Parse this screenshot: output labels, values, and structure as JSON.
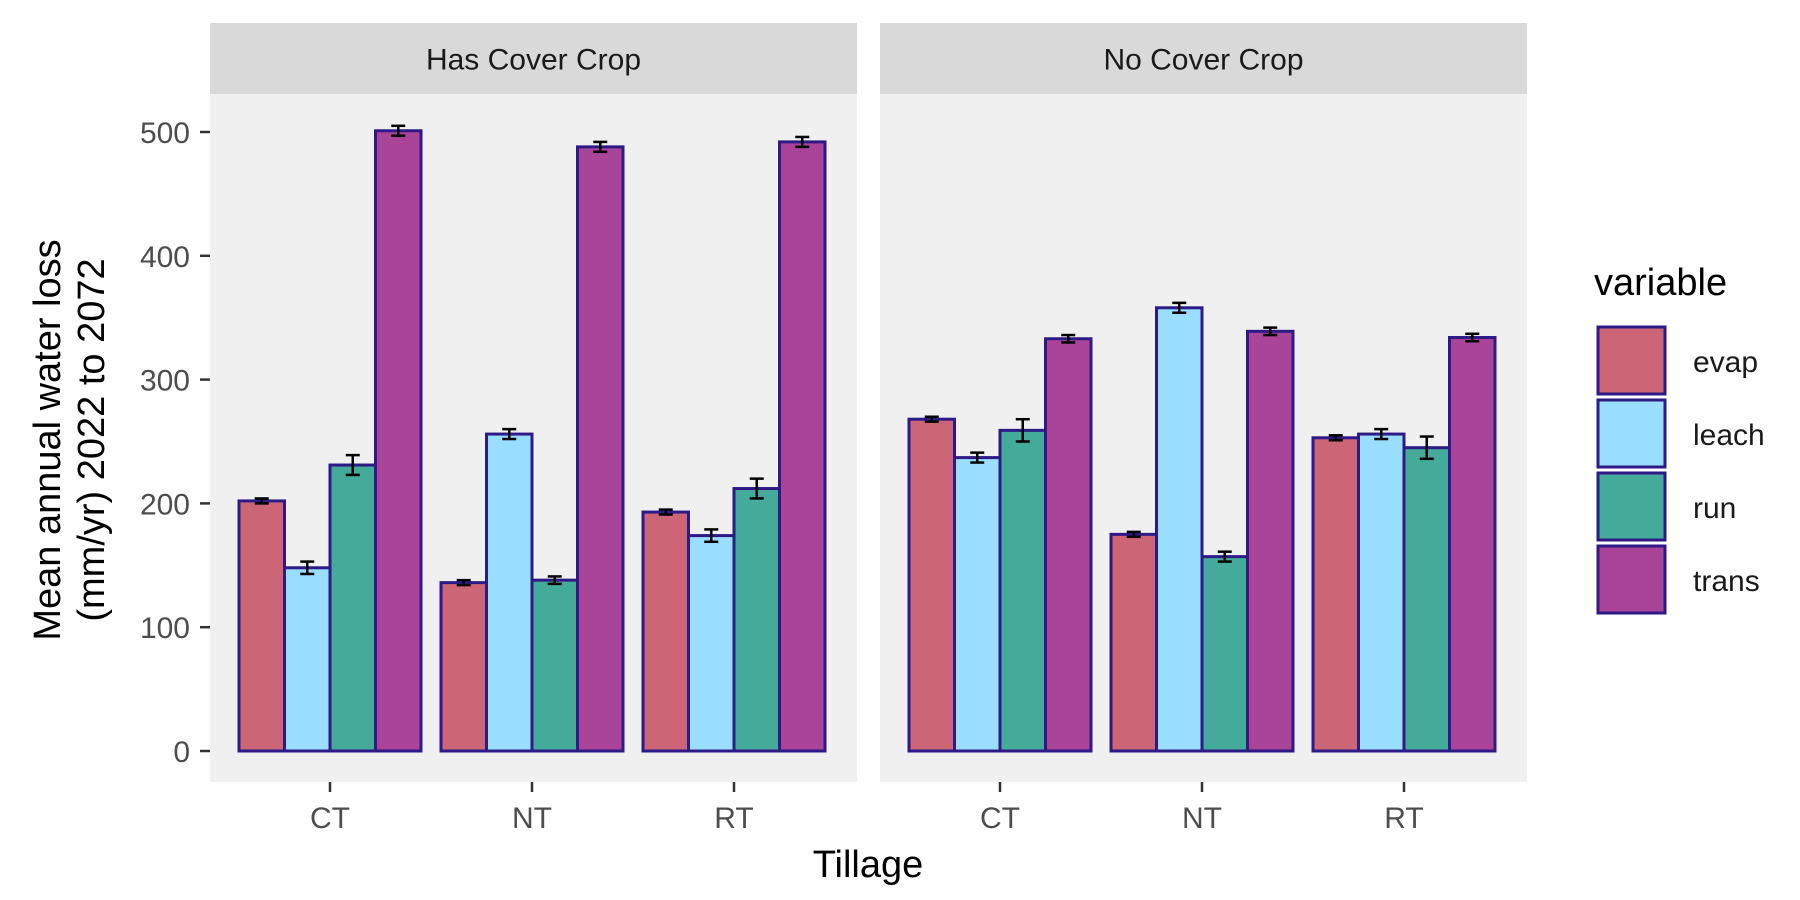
{
  "chart_data": {
    "type": "bar",
    "facets": [
      "Has Cover Crop",
      "No Cover Crop"
    ],
    "categories": [
      "CT",
      "NT",
      "RT"
    ],
    "xlabel": "Tillage",
    "ylabel_lines": [
      "Mean annual water loss",
      "(mm/yr) 2022 to 2072"
    ],
    "ylim": [
      0,
      530
    ],
    "yticks": [
      0,
      100,
      200,
      300,
      400,
      500
    ],
    "legend": {
      "title": "variable",
      "position": "right"
    },
    "bar_outline_color": "#2e1a87",
    "panel_background": "#f0f0f0",
    "strip_background": "#d9d9d9",
    "series": [
      {
        "name": "evap",
        "color": "#cc6677",
        "values": {
          "Has Cover Crop": [
            202,
            136,
            193
          ],
          "No Cover Crop": [
            268,
            175,
            253
          ]
        },
        "errors": {
          "Has Cover Crop": [
            2,
            2,
            2
          ],
          "No Cover Crop": [
            2,
            2,
            2
          ]
        }
      },
      {
        "name": "leach",
        "color": "#99ddff",
        "values": {
          "Has Cover Crop": [
            148,
            256,
            174
          ],
          "No Cover Crop": [
            237,
            358,
            256
          ]
        },
        "errors": {
          "Has Cover Crop": [
            5,
            4,
            5
          ],
          "No Cover Crop": [
            4,
            4,
            4
          ]
        }
      },
      {
        "name": "run",
        "color": "#44aa99",
        "values": {
          "Has Cover Crop": [
            231,
            138,
            212
          ],
          "No Cover Crop": [
            259,
            157,
            245
          ]
        },
        "errors": {
          "Has Cover Crop": [
            8,
            3,
            8
          ],
          "No Cover Crop": [
            9,
            4,
            9
          ]
        }
      },
      {
        "name": "trans",
        "color": "#aa4499",
        "values": {
          "Has Cover Crop": [
            501,
            488,
            492
          ],
          "No Cover Crop": [
            333,
            339,
            334
          ]
        },
        "errors": {
          "Has Cover Crop": [
            4,
            4,
            4
          ],
          "No Cover Crop": [
            3,
            3,
            3
          ]
        }
      }
    ]
  }
}
